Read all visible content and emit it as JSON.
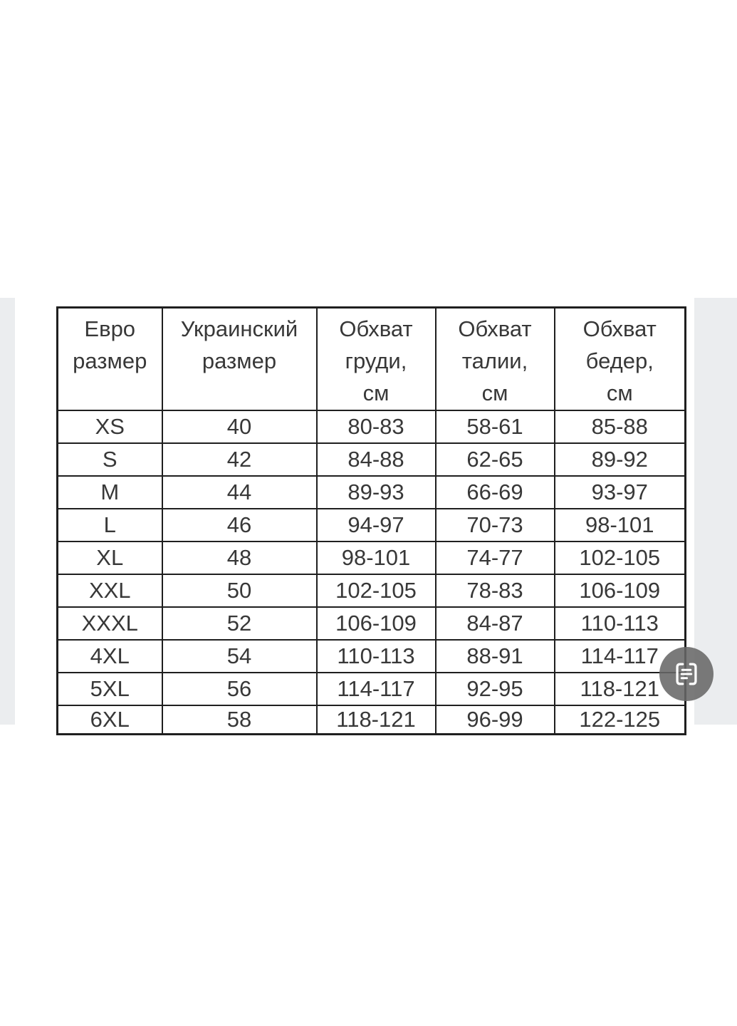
{
  "colors": {
    "page_background": "#ffffff",
    "band_background": "#ebedef",
    "table_border": "#1f1f1f",
    "table_text": "#383838",
    "scan_button_background": "#686868",
    "scan_icon_color": "#ffffff"
  },
  "table": {
    "headers": [
      {
        "lines": [
          "Евро",
          "размер"
        ]
      },
      {
        "lines": [
          "Украинский",
          "размер"
        ]
      },
      {
        "lines": [
          "Обхват",
          "груди,",
          "см"
        ]
      },
      {
        "lines": [
          "Обхват",
          "талии,",
          "см"
        ]
      },
      {
        "lines": [
          "Обхват",
          "бедер,",
          "см"
        ]
      }
    ],
    "rows": [
      [
        "XS",
        "40",
        "80-83",
        "58-61",
        "85-88"
      ],
      [
        "S",
        "42",
        "84-88",
        "62-65",
        "89-92"
      ],
      [
        "M",
        "44",
        "89-93",
        "66-69",
        "93-97"
      ],
      [
        "L",
        "46",
        "94-97",
        "70-73",
        "98-101"
      ],
      [
        "XL",
        "48",
        "98-101",
        "74-77",
        "102-105"
      ],
      [
        "XXL",
        "50",
        "102-105",
        "78-83",
        "106-109"
      ],
      [
        "XXXL",
        "52",
        "106-109",
        "84-87",
        "110-113"
      ],
      [
        "4XL",
        "54",
        "110-113",
        "88-91",
        "114-117"
      ],
      [
        "5XL",
        "56",
        "114-117",
        "92-95",
        "118-121"
      ],
      [
        "6XL",
        "58",
        "118-121",
        "96-99",
        "122-125"
      ]
    ]
  },
  "scan_button": {
    "icon": "scan-text-icon"
  }
}
